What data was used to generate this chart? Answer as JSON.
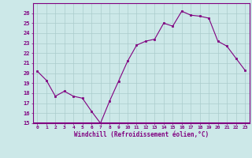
{
  "x": [
    0,
    1,
    2,
    3,
    4,
    5,
    6,
    7,
    8,
    9,
    10,
    11,
    12,
    13,
    14,
    15,
    16,
    17,
    18,
    19,
    20,
    21,
    22,
    23
  ],
  "y": [
    20.2,
    19.3,
    17.7,
    18.2,
    17.7,
    17.5,
    16.2,
    15.0,
    17.2,
    19.2,
    21.2,
    22.8,
    23.2,
    23.4,
    25.0,
    24.7,
    26.2,
    25.8,
    25.7,
    25.5,
    23.2,
    22.7,
    21.5,
    20.3
  ],
  "xlabel": "Windchill (Refroidissement éolien,°C)",
  "ylim": [
    15,
    27
  ],
  "yticks": [
    15,
    16,
    17,
    18,
    19,
    20,
    21,
    22,
    23,
    24,
    25,
    26
  ],
  "xticks": [
    0,
    1,
    2,
    3,
    4,
    5,
    6,
    7,
    8,
    9,
    10,
    11,
    12,
    13,
    14,
    15,
    16,
    17,
    18,
    19,
    20,
    21,
    22,
    23
  ],
  "line_color": "#800080",
  "marker_color": "#800080",
  "bg_color": "#cce8e8",
  "grid_color": "#aacccc",
  "spine_color": "#800080",
  "tick_color": "#800080",
  "label_color": "#800080",
  "xlabel_bottom_color": "#6600aa"
}
